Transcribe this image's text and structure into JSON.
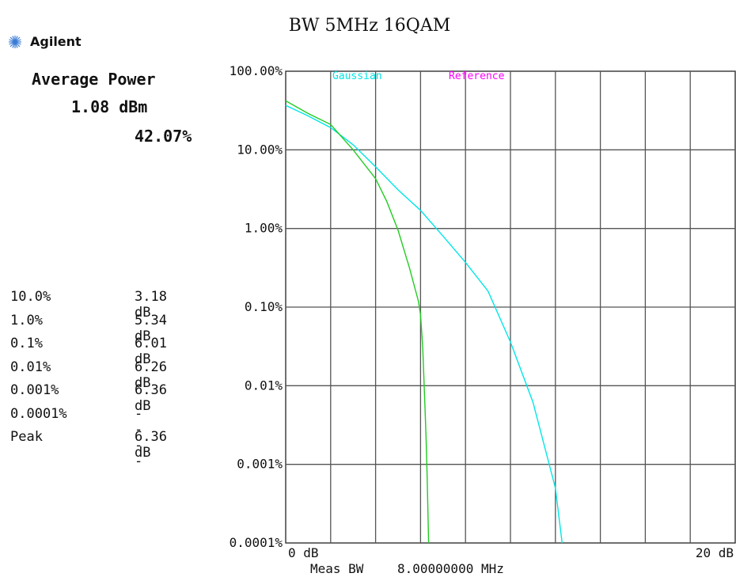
{
  "brand": {
    "name": "Agilent",
    "icon": "agilent-starburst-icon"
  },
  "average_power": {
    "title": "Average Power",
    "value": "1.08 dBm",
    "percent": "42.07%"
  },
  "stats": [
    {
      "label": "10.0%",
      "value": "3.18 dB"
    },
    {
      "label": "1.0%",
      "value": "5.34 dB"
    },
    {
      "label": "0.1%",
      "value": "6.01 dB"
    },
    {
      "label": "0.01%",
      "value": "6.26 dB"
    },
    {
      "label": "0.001%",
      "value": "6.36 dB"
    },
    {
      "label": "0.0001%",
      "value": "----"
    },
    {
      "label": "Peak",
      "value": "6.36 dB"
    }
  ],
  "footer": {
    "meas_bw_label": "Meas BW",
    "meas_bw_value": "8.00000000 MHz"
  },
  "chart_data": {
    "type": "line",
    "title": "BW 5MHz 16QAM",
    "xlabel": "",
    "ylabel": "",
    "x_scale": "linear",
    "y_scale": "log",
    "xlim": [
      0,
      20
    ],
    "ylim": [
      0.0001,
      100
    ],
    "x_tick_labels": [
      "0 dB",
      "20 dB"
    ],
    "y_tick_labels": [
      "100.00%",
      "10.00%",
      "1.00%",
      "0.10%",
      "0.01%",
      "0.001%",
      "0.0001%"
    ],
    "y_tick_values": [
      100,
      10,
      1,
      0.1,
      0.01,
      0.001,
      0.0001
    ],
    "grid": true,
    "grid_x_divisions": 10,
    "legend_position": "top",
    "series": [
      {
        "name": "Gaussian",
        "color": "#00e6e6",
        "x": [
          0,
          1,
          2,
          3,
          4,
          5,
          6,
          7,
          8,
          9,
          10,
          11,
          12,
          12.3
        ],
        "y": [
          36.8,
          27,
          19.2,
          11.6,
          6.1,
          3.1,
          1.7,
          0.8,
          0.37,
          0.16,
          0.036,
          0.0062,
          0.0005,
          0.0001
        ]
      },
      {
        "name": "",
        "color": "#22cc22",
        "x": [
          0,
          1,
          2,
          3,
          4,
          4.5,
          5,
          5.5,
          5.9,
          6.0,
          6.1,
          6.2,
          6.25,
          6.3,
          6.36
        ],
        "y": [
          42,
          29,
          21,
          10,
          4.3,
          2.2,
          0.95,
          0.32,
          0.12,
          0.08,
          0.03,
          0.005,
          0.002,
          0.0006,
          0.0001
        ]
      }
    ],
    "annotations": [
      {
        "text": "Reference",
        "color": "#ff00ff"
      }
    ]
  }
}
